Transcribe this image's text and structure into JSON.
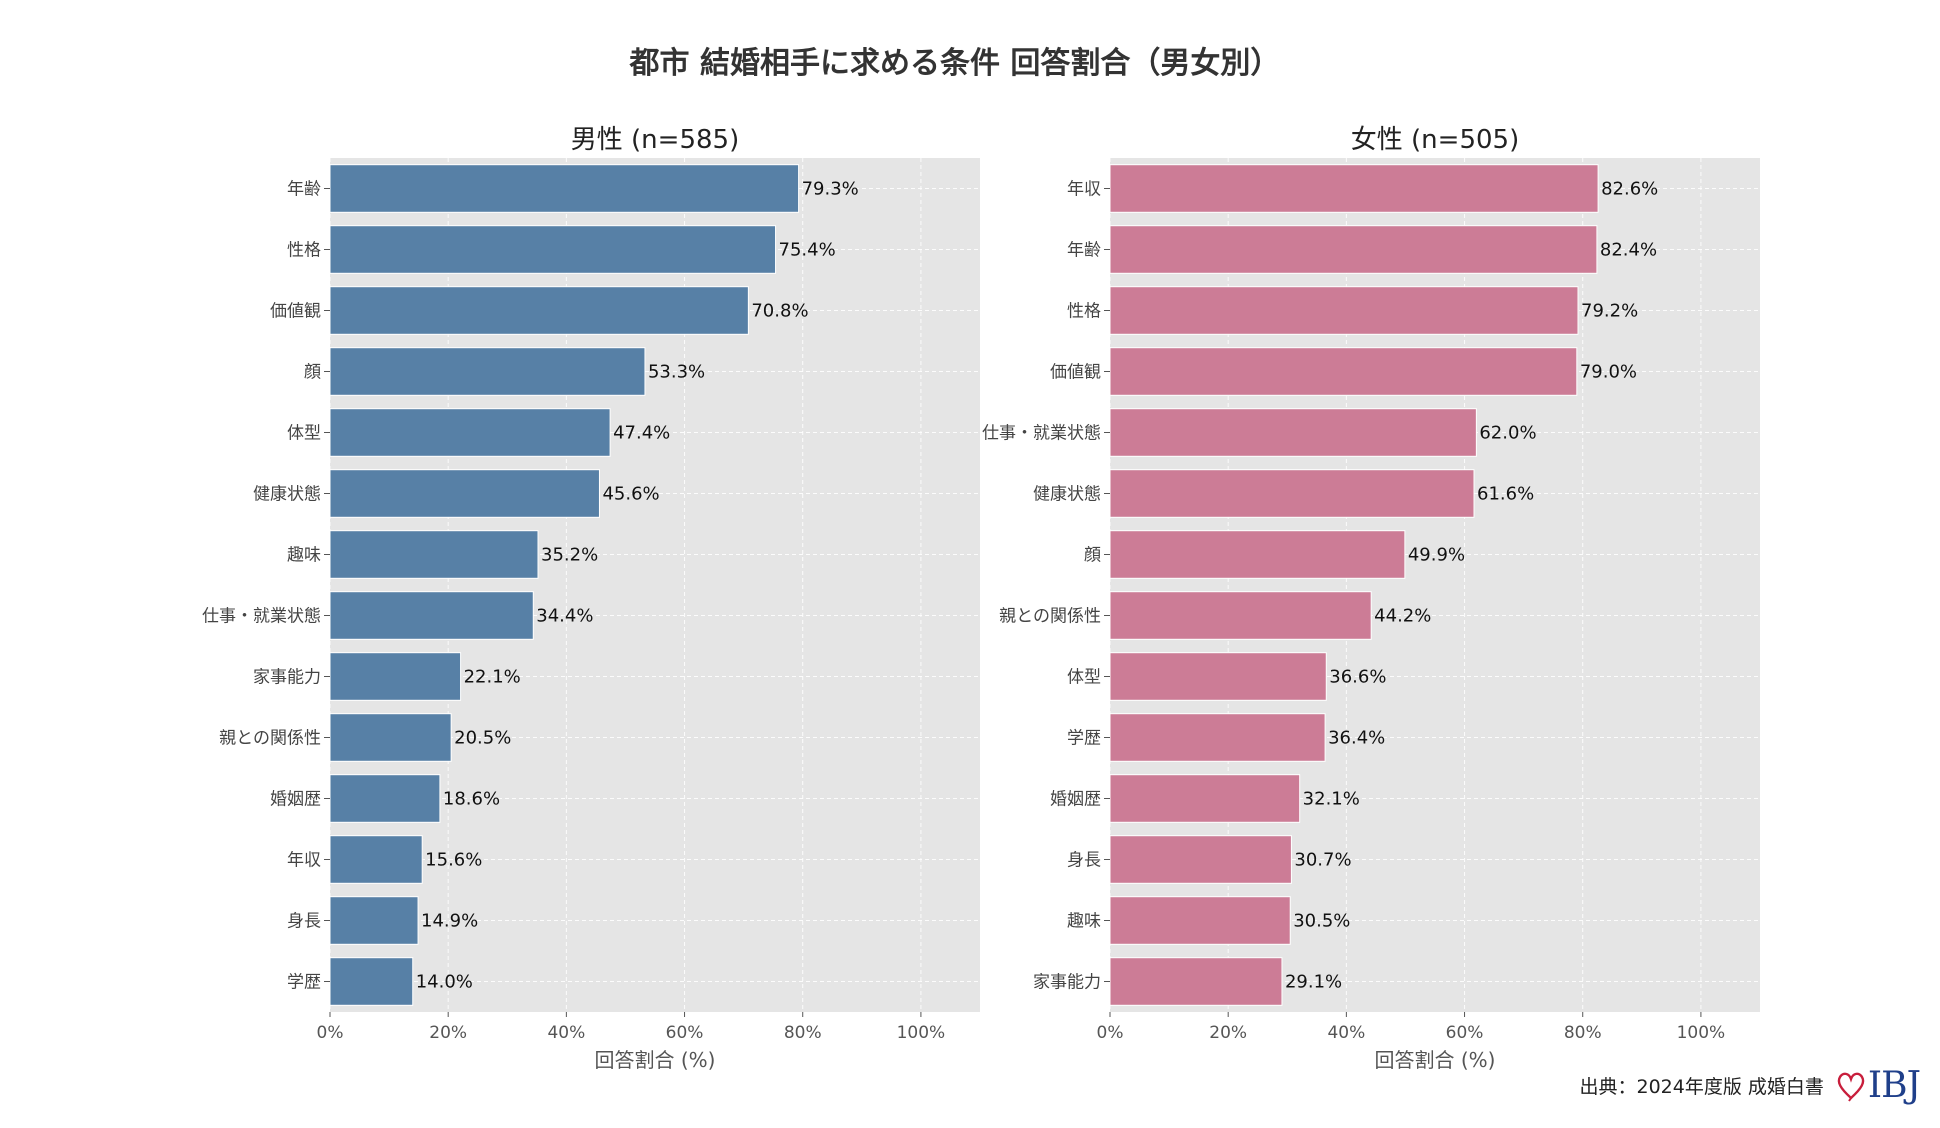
{
  "title": "都市 結婚相手に求める条件 回答割合（男女別）",
  "source": "出典：2024年度版 成婚白書",
  "logo_text": "IBJ",
  "chart_data": [
    {
      "type": "bar",
      "orientation": "horizontal",
      "title": "男性 (n=585)",
      "xlabel": "回答割合 (%)",
      "ylabel": "",
      "xlim": [
        0,
        110
      ],
      "xticks": [
        0,
        20,
        40,
        60,
        80,
        100
      ],
      "xtick_labels": [
        "0%",
        "20%",
        "40%",
        "60%",
        "80%",
        "100%"
      ],
      "grid": true,
      "color": "#5780a6",
      "categories": [
        "年齢",
        "性格",
        "価値観",
        "顔",
        "体型",
        "健康状態",
        "趣味",
        "仕事・就業状態",
        "家事能力",
        "親との関係性",
        "婚姻歴",
        "年収",
        "身長",
        "学歴"
      ],
      "values": [
        79.3,
        75.4,
        70.8,
        53.3,
        47.4,
        45.6,
        35.2,
        34.4,
        22.1,
        20.5,
        18.6,
        15.6,
        14.9,
        14.0
      ],
      "value_labels": [
        "79.3%",
        "75.4%",
        "70.8%",
        "53.3%",
        "47.4%",
        "45.6%",
        "35.2%",
        "34.4%",
        "22.1%",
        "20.5%",
        "18.6%",
        "15.6%",
        "14.9%",
        "14.0%"
      ]
    },
    {
      "type": "bar",
      "orientation": "horizontal",
      "title": "女性 (n=505)",
      "xlabel": "回答割合 (%)",
      "ylabel": "",
      "xlim": [
        0,
        110
      ],
      "xticks": [
        0,
        20,
        40,
        60,
        80,
        100
      ],
      "xtick_labels": [
        "0%",
        "20%",
        "40%",
        "60%",
        "80%",
        "100%"
      ],
      "grid": true,
      "color": "#cc7c96",
      "categories": [
        "年収",
        "年齢",
        "性格",
        "価値観",
        "仕事・就業状態",
        "健康状態",
        "顔",
        "親との関係性",
        "体型",
        "学歴",
        "婚姻歴",
        "身長",
        "趣味",
        "家事能力"
      ],
      "values": [
        82.6,
        82.4,
        79.2,
        79.0,
        62.0,
        61.6,
        49.9,
        44.2,
        36.6,
        36.4,
        32.1,
        30.7,
        30.5,
        29.1
      ],
      "value_labels": [
        "82.6%",
        "82.4%",
        "79.2%",
        "79.0%",
        "62.0%",
        "61.6%",
        "49.9%",
        "44.2%",
        "36.6%",
        "36.4%",
        "32.1%",
        "30.7%",
        "30.5%",
        "29.1%"
      ]
    }
  ]
}
